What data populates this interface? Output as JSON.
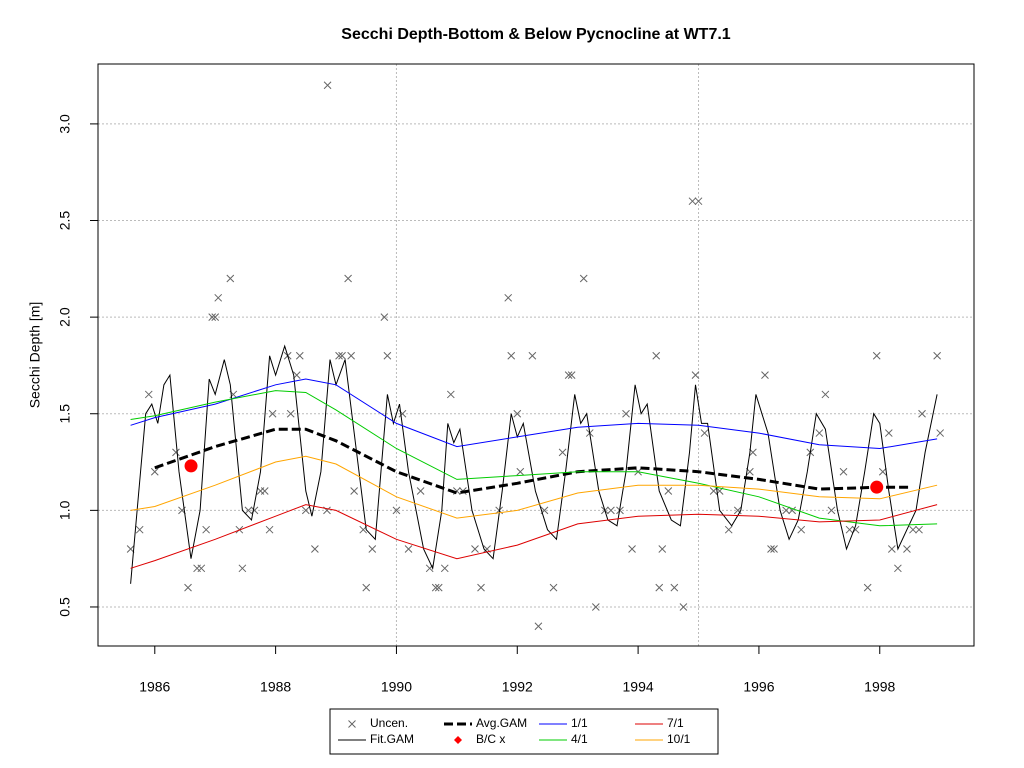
{
  "chart_data": {
    "type": "line",
    "title": "Secchi Depth-Bottom & Below Pycnocline at WT7.1",
    "y_label": "Secchi Depth [m]",
    "xlim": [
      1985.06,
      1999.56
    ],
    "ylim": [
      0.298,
      3.31
    ],
    "xticks": [
      1986,
      1988,
      1990,
      1992,
      1994,
      1996,
      1998
    ],
    "yticks": [
      0.5,
      {
        "value": 1.0,
        "label": "1.0"
      },
      1.5,
      {
        "value": 2.0,
        "label": "2.0"
      },
      2.5,
      {
        "value": 3.0,
        "label": "3.0"
      }
    ],
    "xgrid": [
      1990,
      1995
    ],
    "grid": true,
    "legend": "bottom",
    "series": [
      {
        "name": "Uncen.",
        "color": "#666666",
        "style": "x",
        "x": [
          1985.6,
          1985.75,
          1985.9,
          1986.0,
          1986.35,
          1986.45,
          1986.55,
          1986.7,
          1986.77,
          1986.85,
          1986.95,
          1987.0,
          1987.05,
          1987.25,
          1987.3,
          1987.4,
          1987.45,
          1987.55,
          1987.65,
          1987.75,
          1987.82,
          1987.9,
          1987.95,
          1988.2,
          1988.25,
          1988.35,
          1988.4,
          1988.5,
          1988.65,
          1988.85,
          1988.86,
          1989.05,
          1989.1,
          1989.2,
          1989.25,
          1989.3,
          1989.45,
          1989.5,
          1989.6,
          1989.8,
          1989.85,
          1990.0,
          1990.1,
          1990.2,
          1990.4,
          1990.55,
          1990.65,
          1990.7,
          1990.8,
          1990.9,
          1991.0,
          1991.1,
          1991.3,
          1991.4,
          1991.5,
          1991.7,
          1991.85,
          1991.9,
          1992.0,
          1992.05,
          1992.25,
          1992.35,
          1992.45,
          1992.6,
          1992.75,
          1992.85,
          1992.9,
          1993.1,
          1993.2,
          1993.3,
          1993.45,
          1993.55,
          1993.7,
          1993.8,
          1993.9,
          1994.0,
          1994.3,
          1994.35,
          1994.4,
          1994.5,
          1994.6,
          1994.75,
          1994.9,
          1995.0,
          1994.95,
          1995.1,
          1995.25,
          1995.35,
          1995.5,
          1995.65,
          1995.85,
          1995.9,
          1996.1,
          1996.2,
          1996.25,
          1996.45,
          1996.55,
          1996.7,
          1996.85,
          1997.0,
          1997.1,
          1997.2,
          1997.4,
          1997.5,
          1997.6,
          1997.8,
          1997.95,
          1998.05,
          1998.15,
          1998.2,
          1998.3,
          1998.45,
          1998.55,
          1998.65,
          1998.7,
          1998.95,
          1999.0
        ],
        "values": [
          0.8,
          0.9,
          1.6,
          1.2,
          1.3,
          1.0,
          0.6,
          0.7,
          0.7,
          0.9,
          2.0,
          2.0,
          2.1,
          2.2,
          1.6,
          0.9,
          0.7,
          1.0,
          1.0,
          1.1,
          1.1,
          0.9,
          1.5,
          1.8,
          1.5,
          1.7,
          1.8,
          1.0,
          0.8,
          1.0,
          3.2,
          1.8,
          1.8,
          2.2,
          1.8,
          1.1,
          0.9,
          0.6,
          0.8,
          2.0,
          1.8,
          1.0,
          1.5,
          0.8,
          1.1,
          0.7,
          0.6,
          0.6,
          0.7,
          1.6,
          1.1,
          1.1,
          0.8,
          0.6,
          0.8,
          1.0,
          2.1,
          1.8,
          1.5,
          1.2,
          1.8,
          0.4,
          1.0,
          0.6,
          1.3,
          1.7,
          1.7,
          2.2,
          1.4,
          0.5,
          1.0,
          1.0,
          1.0,
          1.5,
          0.8,
          1.2,
          1.8,
          0.6,
          0.8,
          1.1,
          0.6,
          0.5,
          2.6,
          2.6,
          1.7,
          1.4,
          1.1,
          1.1,
          0.9,
          1.0,
          1.2,
          1.3,
          1.7,
          0.8,
          0.8,
          1.0,
          1.0,
          0.9,
          1.3,
          1.4,
          1.6,
          1.0,
          1.2,
          0.9,
          0.9,
          0.6,
          1.8,
          1.2,
          1.4,
          0.8,
          0.7,
          0.8,
          0.9,
          0.9,
          1.5,
          1.8,
          1.4
        ]
      },
      {
        "name": "Fit.GAM",
        "color": "#000000",
        "style": "line",
        "x": [
          1985.6,
          1985.85,
          1985.95,
          1986.05,
          1986.15,
          1986.25,
          1986.4,
          1986.6,
          1986.75,
          1986.9,
          1987.0,
          1987.15,
          1987.25,
          1987.45,
          1987.6,
          1987.75,
          1987.9,
          1988.0,
          1988.15,
          1988.3,
          1988.5,
          1988.6,
          1988.75,
          1988.9,
          1989.0,
          1989.15,
          1989.3,
          1989.5,
          1989.65,
          1989.85,
          1989.95,
          1990.05,
          1990.2,
          1990.45,
          1990.6,
          1990.75,
          1990.85,
          1990.95,
          1991.05,
          1991.25,
          1991.45,
          1991.6,
          1991.75,
          1991.9,
          1992.0,
          1992.1,
          1992.3,
          1992.5,
          1992.65,
          1992.8,
          1992.95,
          1993.05,
          1993.15,
          1993.35,
          1993.5,
          1993.65,
          1993.8,
          1993.95,
          1994.05,
          1994.15,
          1994.35,
          1994.55,
          1994.7,
          1994.85,
          1994.95,
          1995.05,
          1995.15,
          1995.35,
          1995.55,
          1995.7,
          1995.85,
          1995.95,
          1996.05,
          1996.15,
          1996.35,
          1996.5,
          1996.65,
          1996.8,
          1996.95,
          1997.1,
          1997.3,
          1997.45,
          1997.6,
          1997.75,
          1997.9,
          1998.0,
          1998.15,
          1998.3,
          1998.45,
          1998.6,
          1998.75,
          1998.95
        ],
        "values": [
          0.62,
          1.5,
          1.55,
          1.45,
          1.65,
          1.7,
          1.2,
          0.75,
          1.0,
          1.68,
          1.6,
          1.78,
          1.65,
          1.0,
          0.95,
          1.2,
          1.8,
          1.7,
          1.85,
          1.7,
          1.1,
          0.97,
          1.2,
          1.78,
          1.65,
          1.78,
          1.4,
          0.9,
          0.85,
          1.6,
          1.45,
          1.55,
          1.2,
          0.8,
          0.7,
          1.0,
          1.45,
          1.35,
          1.42,
          1.0,
          0.8,
          0.75,
          1.1,
          1.5,
          1.38,
          1.45,
          1.1,
          0.9,
          0.85,
          1.2,
          1.6,
          1.45,
          1.5,
          1.1,
          0.95,
          0.92,
          1.2,
          1.65,
          1.5,
          1.55,
          1.1,
          0.95,
          0.92,
          1.3,
          1.65,
          1.45,
          1.45,
          1.0,
          0.92,
          1.0,
          1.3,
          1.6,
          1.5,
          1.4,
          1.0,
          0.85,
          0.95,
          1.2,
          1.5,
          1.42,
          1.0,
          0.8,
          0.92,
          1.2,
          1.5,
          1.45,
          1.1,
          0.8,
          0.9,
          1.0,
          1.3,
          1.6
        ]
      },
      {
        "name": "Avg.GAM",
        "color": "#000000",
        "style": "dashed",
        "x": [
          1986,
          1987,
          1988,
          1988.5,
          1989,
          1990,
          1991,
          1992,
          1993,
          1994,
          1995,
          1996,
          1997,
          1998,
          1998.5
        ],
        "values": [
          1.22,
          1.33,
          1.42,
          1.42,
          1.36,
          1.2,
          1.09,
          1.14,
          1.2,
          1.22,
          1.2,
          1.16,
          1.11,
          1.12,
          1.12
        ]
      },
      {
        "name": "B/C x",
        "color": "#ff0000",
        "style": "dot",
        "x": [
          1986.6,
          1997.95
        ],
        "values": [
          1.23,
          1.12
        ]
      },
      {
        "name": "1/1",
        "color": "#0000ff",
        "style": "line",
        "x": [
          1985.6,
          1986,
          1987,
          1988,
          1988.5,
          1989,
          1990,
          1991,
          1992,
          1993,
          1994,
          1995,
          1996,
          1997,
          1998,
          1998.95
        ],
        "values": [
          1.44,
          1.48,
          1.55,
          1.65,
          1.68,
          1.65,
          1.45,
          1.33,
          1.38,
          1.43,
          1.45,
          1.44,
          1.4,
          1.34,
          1.32,
          1.37
        ]
      },
      {
        "name": "4/1",
        "color": "#00cc00",
        "style": "line",
        "x": [
          1985.6,
          1986,
          1987,
          1988,
          1988.5,
          1989,
          1990,
          1991,
          1992,
          1993,
          1994,
          1995,
          1996,
          1997,
          1998,
          1998.95
        ],
        "values": [
          1.47,
          1.49,
          1.56,
          1.62,
          1.61,
          1.52,
          1.32,
          1.16,
          1.18,
          1.2,
          1.2,
          1.14,
          1.07,
          0.96,
          0.92,
          0.93
        ]
      },
      {
        "name": "7/1",
        "color": "#dd0000",
        "style": "line",
        "x": [
          1985.6,
          1986,
          1987,
          1988,
          1988.5,
          1989,
          1990,
          1991,
          1992,
          1993,
          1994,
          1995,
          1996,
          1997,
          1998,
          1998.95
        ],
        "values": [
          0.7,
          0.74,
          0.85,
          0.97,
          1.03,
          1.0,
          0.85,
          0.75,
          0.82,
          0.93,
          0.97,
          0.98,
          0.97,
          0.94,
          0.95,
          1.03
        ]
      },
      {
        "name": "10/1",
        "color": "#ffa500",
        "style": "line",
        "x": [
          1985.6,
          1986,
          1987,
          1988,
          1988.5,
          1989,
          1990,
          1991,
          1992,
          1993,
          1994,
          1995,
          1996,
          1997,
          1998,
          1998.95
        ],
        "values": [
          1.0,
          1.02,
          1.13,
          1.25,
          1.28,
          1.24,
          1.07,
          0.96,
          1.0,
          1.09,
          1.13,
          1.13,
          1.11,
          1.07,
          1.06,
          1.13
        ]
      }
    ]
  }
}
